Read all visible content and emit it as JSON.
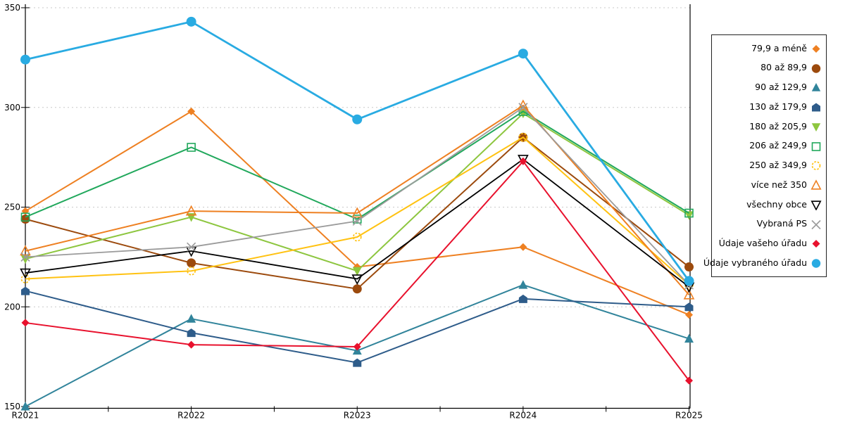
{
  "chart_data": {
    "type": "line",
    "title": "",
    "xlabel": "",
    "ylabel": "",
    "categories": [
      "R2021",
      "R2022",
      "R2023",
      "R2024",
      "R2025"
    ],
    "ylim": [
      150,
      350
    ],
    "yticks": [
      150,
      200,
      250,
      300,
      350
    ],
    "grid": "horizontal-dotted",
    "legend_position": "right",
    "series": [
      {
        "name": "79,9 a méně",
        "marker": "diamond",
        "fill": "filled",
        "color": "#EE8022",
        "values": [
          248,
          298,
          220,
          230,
          196
        ]
      },
      {
        "name": "80 až 89,9",
        "marker": "circle",
        "fill": "filled",
        "color": "#9C4A0D",
        "values": [
          244,
          222,
          209,
          285,
          220
        ]
      },
      {
        "name": "90 až 129,9",
        "marker": "triangle-up",
        "fill": "filled",
        "color": "#31849B",
        "values": [
          150,
          194,
          178,
          211,
          184
        ]
      },
      {
        "name": "130 až 179,9",
        "marker": "pentagon",
        "fill": "filled",
        "color": "#2E5C8A",
        "values": [
          208,
          187,
          172,
          204,
          200
        ]
      },
      {
        "name": "180 až 205,9",
        "marker": "triangle-down",
        "fill": "filled",
        "color": "#8DC63F",
        "values": [
          224,
          245,
          218,
          297,
          246
        ]
      },
      {
        "name": "206 až 249,9",
        "marker": "square",
        "fill": "open",
        "color": "#21A85C",
        "values": [
          245,
          280,
          244,
          298,
          247
        ]
      },
      {
        "name": "250 až 349,9",
        "marker": "circle-dashed",
        "fill": "open",
        "color": "#FFC212",
        "values": [
          214,
          218,
          235,
          285,
          211
        ]
      },
      {
        "name": "více než 350",
        "marker": "triangle-up",
        "fill": "open",
        "color": "#EE8022",
        "values": [
          228,
          248,
          247,
          301,
          206
        ]
      },
      {
        "name": "všechny obce",
        "marker": "triangle-down",
        "fill": "open",
        "color": "#000000",
        "values": [
          217,
          228,
          214,
          274,
          210
        ]
      },
      {
        "name": "Vybraná PS",
        "marker": "x",
        "fill": "open",
        "color": "#9B9B9B",
        "values": [
          225,
          230,
          243,
          300,
          211
        ]
      },
      {
        "name": "Údaje vašeho úřadu",
        "marker": "diamond",
        "fill": "filled",
        "color": "#E8112D",
        "values": [
          192,
          181,
          180,
          273,
          163
        ]
      },
      {
        "name": "Údaje vybraného úřadu",
        "marker": "circle",
        "fill": "filled",
        "color": "#29ABE2",
        "values": [
          324,
          343,
          294,
          327,
          213
        ]
      }
    ],
    "colors": {
      "axis": "#000000",
      "gridline": "#c9c9c9",
      "background": "#ffffff"
    }
  }
}
